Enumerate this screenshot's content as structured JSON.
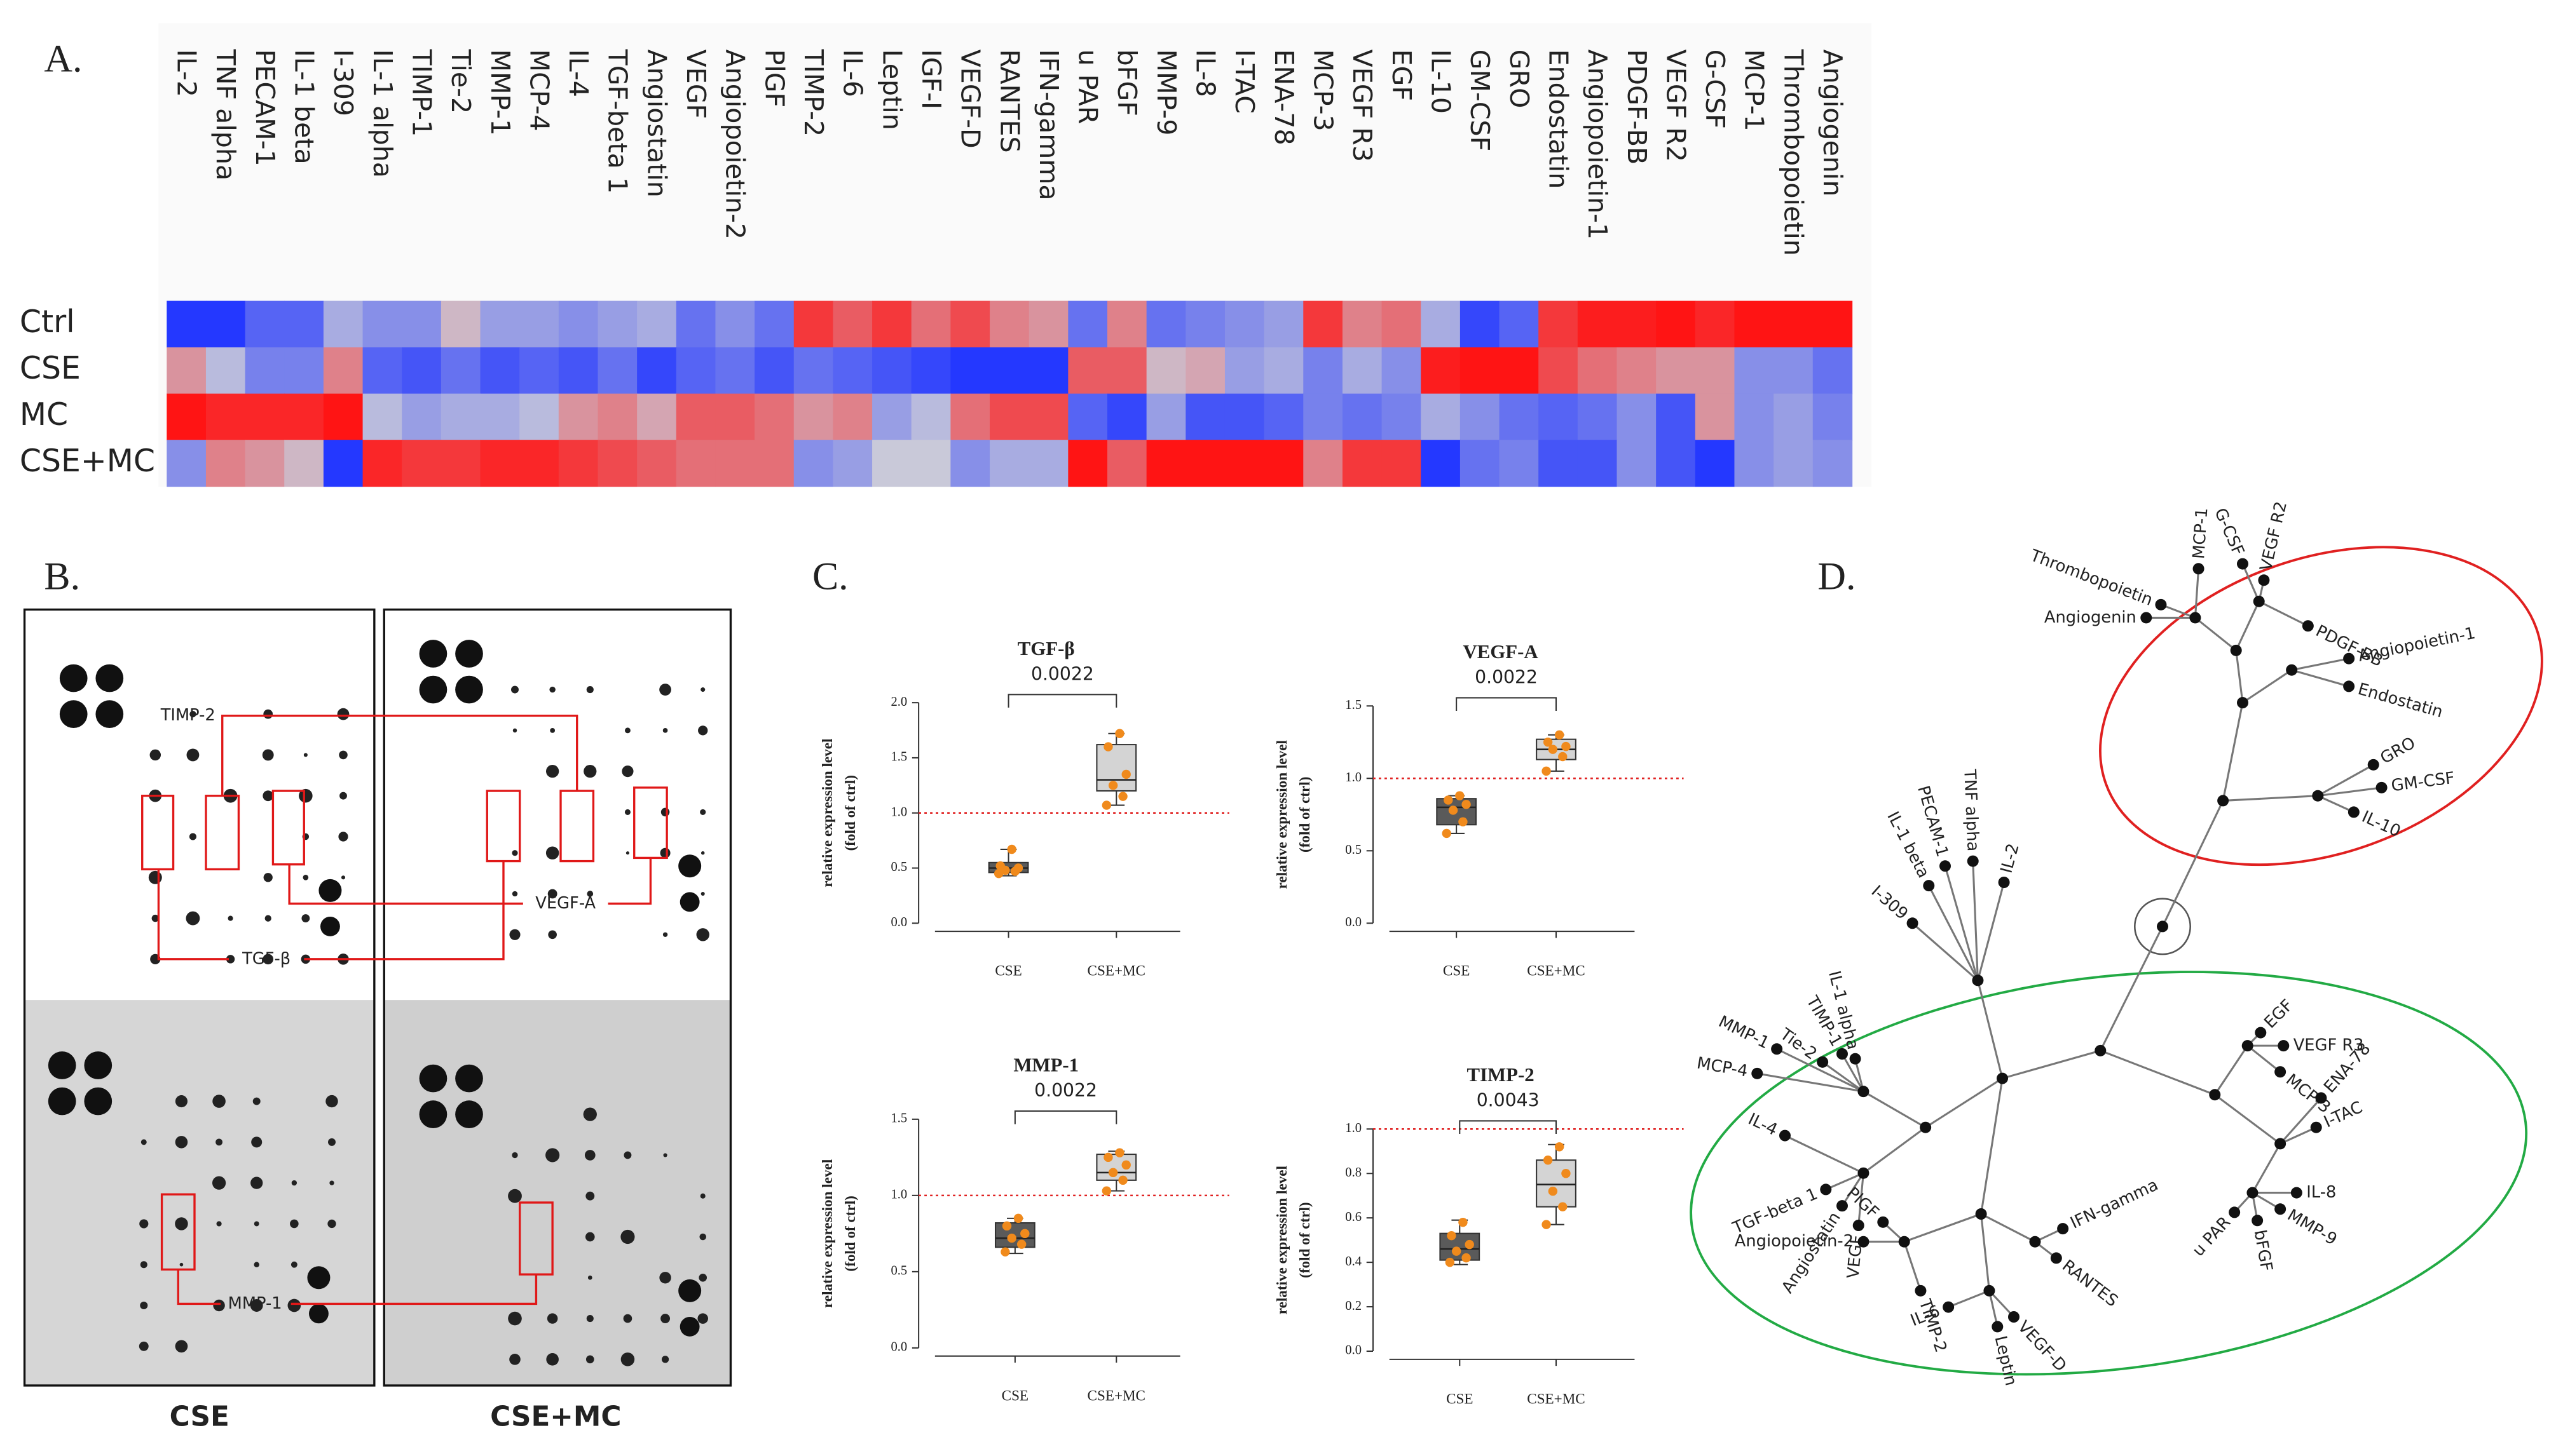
{
  "panel_labels": [
    "A.",
    "B.",
    "C.",
    "D."
  ],
  "chart_data": [
    {
      "type": "heatmap",
      "columns": [
        "IL-2",
        "TNF alpha",
        "PECAM-1",
        "IL-1 beta",
        "I-309",
        "IL-1 alpha",
        "TIMP-1",
        "Tie-2",
        "MMP-1",
        "MCP-4",
        "IL-4",
        "TGF-beta 1",
        "Angiostatin",
        "VEGF",
        "Angiopoietin-2",
        "PlGF",
        "TIMP-2",
        "IL-6",
        "Leptin",
        "IGF-I",
        "VEGF-D",
        "RANTES",
        "IFN-gamma",
        "u PAR",
        "bFGF",
        "MMP-9",
        "IL-8",
        "I-TAC",
        "ENA-78",
        "MCP-3",
        "VEGF R3",
        "EGF",
        "IL-10",
        "GM-CSF",
        "GRO",
        "Endostatin",
        "Angiopoietin-1",
        "PDGF-BB",
        "VEGF R2",
        "G-CSF",
        "MCP-1",
        "Thrombopoietin",
        "Angiogenin"
      ],
      "rows": [
        "Ctrl",
        "CSE",
        "MC",
        "CSE+MC"
      ],
      "values": [
        [
          -1,
          -1,
          -0.7,
          -0.7,
          -0.2,
          -0.4,
          -0.4,
          0.1,
          -0.3,
          -0.3,
          -0.4,
          -0.3,
          -0.2,
          -0.6,
          -0.4,
          -0.6,
          0.8,
          0.6,
          0.8,
          0.5,
          0.7,
          0.4,
          0.3,
          -0.6,
          0.4,
          -0.6,
          -0.5,
          -0.4,
          -0.3,
          0.8,
          0.4,
          0.5,
          -0.2,
          -0.9,
          -0.7,
          0.8,
          0.95,
          0.95,
          1,
          0.9,
          1,
          1,
          1
        ],
        [
          0.3,
          -0.1,
          -0.5,
          -0.5,
          0.4,
          -0.7,
          -0.8,
          -0.6,
          -0.8,
          -0.7,
          -0.8,
          -0.6,
          -0.9,
          -0.7,
          -0.6,
          -0.8,
          -0.6,
          -0.7,
          -0.8,
          -0.9,
          -1,
          -1,
          -1,
          0.6,
          0.6,
          0.1,
          0.2,
          -0.3,
          -0.2,
          -0.5,
          -0.2,
          -0.4,
          0.95,
          1,
          1,
          0.7,
          0.5,
          0.4,
          0.3,
          0.3,
          -0.4,
          -0.4,
          -0.6
        ],
        [
          1,
          0.9,
          0.9,
          0.9,
          1,
          -0.1,
          -0.3,
          -0.2,
          -0.2,
          -0.1,
          0.3,
          0.4,
          0.2,
          0.6,
          0.6,
          0.5,
          0.3,
          0.4,
          -0.3,
          -0.1,
          0.5,
          0.7,
          0.7,
          -0.7,
          -0.9,
          -0.3,
          -0.8,
          -0.8,
          -0.7,
          -0.5,
          -0.6,
          -0.5,
          -0.2,
          -0.4,
          -0.6,
          -0.7,
          -0.6,
          -0.4,
          -0.8,
          0.3,
          -0.4,
          -0.3,
          -0.5
        ],
        [
          -0.4,
          0.4,
          0.3,
          0.1,
          -1,
          0.9,
          0.8,
          0.8,
          0.9,
          0.9,
          0.8,
          0.7,
          0.6,
          0.5,
          0.5,
          0.5,
          -0.4,
          -0.3,
          0,
          0,
          -0.4,
          -0.2,
          -0.2,
          1,
          0.6,
          1,
          1,
          1,
          1,
          0.4,
          0.8,
          0.8,
          -1,
          -0.6,
          -0.5,
          -0.8,
          -0.8,
          -0.4,
          -0.8,
          -1,
          -0.4,
          -0.3,
          -0.4
        ]
      ],
      "zlim": [
        -1,
        1
      ],
      "color_low": "#2438ff",
      "color_mid": "#c9c9d9",
      "color_high": "#ff1414"
    },
    {
      "type": "box",
      "title": "TGF-β",
      "ylabel": [
        "relative expression level",
        "(fold of ctrl)"
      ],
      "categories": [
        "CSE",
        "CSE+MC"
      ],
      "annotation": "0.0022",
      "reference_line": 1,
      "ylim": [
        0,
        2
      ],
      "yticks": [
        {
          "value": 0,
          "label": "0.0"
        },
        0.5,
        {
          "value": 1,
          "label": "1.0"
        },
        1.5,
        {
          "value": 2,
          "label": "2.0"
        }
      ],
      "box_colors": [
        "#5a5a5a",
        "#d4d4d4"
      ],
      "point_color": "#f08a1c",
      "reference_color": "#e02020",
      "boxes": [
        {
          "min": 0.43,
          "q1": 0.46,
          "median": 0.5,
          "q3": 0.55,
          "max": 0.67,
          "points": [
            0.45,
            0.47,
            0.48,
            0.5,
            0.52,
            0.67
          ]
        },
        {
          "min": 1.07,
          "q1": 1.2,
          "median": 1.3,
          "q3": 1.62,
          "max": 1.72,
          "points": [
            1.07,
            1.15,
            1.25,
            1.35,
            1.6,
            1.72
          ]
        }
      ]
    },
    {
      "type": "box",
      "title": "VEGF-A",
      "ylabel": [
        "relative expression level",
        "(fold of ctrl)"
      ],
      "categories": [
        "CSE",
        "CSE+MC"
      ],
      "annotation": "0.0022",
      "reference_line": 1,
      "ylim": [
        0,
        1.5
      ],
      "yticks": [
        {
          "value": 0,
          "label": "0.0"
        },
        0.5,
        {
          "value": 1,
          "label": "1.0"
        },
        1.5
      ],
      "box_colors": [
        "#5a5a5a",
        "#d4d4d4"
      ],
      "point_color": "#f08a1c",
      "reference_color": "#e02020",
      "boxes": [
        {
          "min": 0.62,
          "q1": 0.68,
          "median": 0.8,
          "q3": 0.86,
          "max": 0.88,
          "points": [
            0.62,
            0.7,
            0.78,
            0.82,
            0.85,
            0.88
          ]
        },
        {
          "min": 1.05,
          "q1": 1.13,
          "median": 1.2,
          "q3": 1.27,
          "max": 1.3,
          "points": [
            1.05,
            1.15,
            1.2,
            1.22,
            1.25,
            1.3
          ]
        }
      ]
    },
    {
      "type": "box",
      "title": "MMP-1",
      "ylabel": [
        "relative expression level",
        "(fold of ctrl)"
      ],
      "categories": [
        "CSE",
        "CSE+MC"
      ],
      "annotation": "0.0022",
      "reference_line": 1,
      "ylim": [
        0,
        1.5
      ],
      "yticks": [
        {
          "value": 0,
          "label": "0.0"
        },
        0.5,
        {
          "value": 1,
          "label": "1.0"
        },
        1.5
      ],
      "box_colors": [
        "#5a5a5a",
        "#d4d4d4"
      ],
      "point_color": "#f08a1c",
      "reference_color": "#e02020",
      "boxes": [
        {
          "min": 0.62,
          "q1": 0.66,
          "median": 0.72,
          "q3": 0.82,
          "max": 0.85,
          "points": [
            0.63,
            0.68,
            0.72,
            0.75,
            0.8,
            0.85
          ]
        },
        {
          "min": 1.03,
          "q1": 1.1,
          "median": 1.15,
          "q3": 1.27,
          "max": 1.29,
          "points": [
            1.03,
            1.1,
            1.15,
            1.2,
            1.25,
            1.28
          ]
        }
      ]
    },
    {
      "type": "box",
      "title": "TIMP-2",
      "ylabel": [
        "relative expression level",
        "(fold of ctrl)"
      ],
      "categories": [
        "CSE",
        "CSE+MC"
      ],
      "annotation": "0.0043",
      "reference_line": 1,
      "ylim": [
        0,
        1
      ],
      "yticks": [
        {
          "value": 0,
          "label": "0.0"
        },
        0.2,
        0.4,
        0.6,
        0.8,
        {
          "value": 1,
          "label": "1.0"
        }
      ],
      "box_colors": [
        "#5a5a5a",
        "#d4d4d4"
      ],
      "point_color": "#f08a1c",
      "reference_color": "#e02020",
      "boxes": [
        {
          "min": 0.39,
          "q1": 0.41,
          "median": 0.46,
          "q3": 0.53,
          "max": 0.59,
          "points": [
            0.4,
            0.42,
            0.45,
            0.48,
            0.52,
            0.58
          ]
        },
        {
          "min": 0.57,
          "q1": 0.65,
          "median": 0.75,
          "q3": 0.86,
          "max": 0.93,
          "points": [
            0.57,
            0.65,
            0.72,
            0.8,
            0.86,
            0.92
          ]
        }
      ]
    }
  ],
  "blot": {
    "captions": [
      "CSE",
      "CSE+MC"
    ],
    "markers": [
      "TIMP-2",
      "VEGF-A",
      "TGF-β",
      "MMP-1"
    ]
  },
  "tree": {
    "leaves": [
      "GRO",
      "GM-CSF",
      "IL-10",
      "Angiopoietin-1",
      "Endostatin",
      "PDGF-BB",
      "VEGF R2",
      "G-CSF",
      "MCP-1",
      "Thrombopoietin",
      "Angiogenin",
      "IL-2",
      "TNF alpha",
      "PECAM-1",
      "IL-1 beta",
      "I-309",
      "IL-1 alpha",
      "TIMP-1",
      "Tie-2",
      "MMP-1",
      "MCP-4",
      "IL-4",
      "TGF-beta 1",
      "Angiostatin",
      "VEGF",
      "PlGF",
      "Angiopoietin-2",
      "TIMP-2",
      "IL-6",
      "Leptin",
      "VEGF-D",
      "RANTES",
      "IFN-gamma",
      "EGF",
      "VEGF R3",
      "MCP-3",
      "ENA-78",
      "I-TAC",
      "IL-8",
      "MMP-9",
      "bFGF",
      "u PAR"
    ]
  }
}
